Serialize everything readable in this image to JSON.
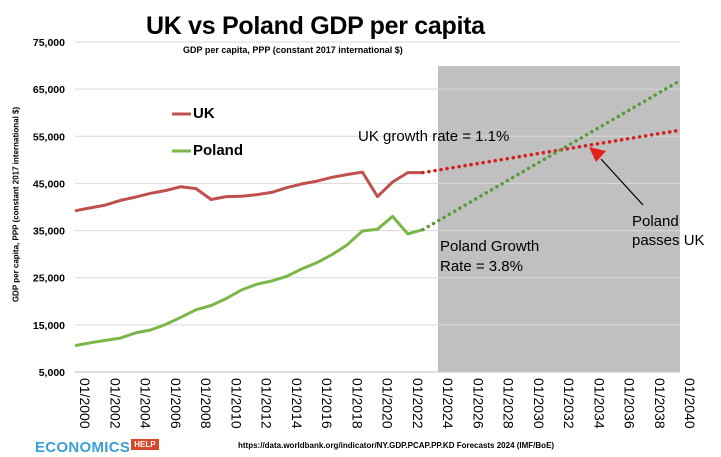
{
  "chart_data": {
    "type": "line",
    "title": "UK vs Poland GDP per capita",
    "subtitle": "GDP per capita, PPP (constant 2017 international $)",
    "ylabel": "GDP per capita, PPP (constant 2017 international $)",
    "xlabel": "",
    "ylim": [
      5000,
      75000
    ],
    "xlim": [
      2000,
      2040
    ],
    "yticks": [
      5000,
      15000,
      25000,
      35000,
      45000,
      55000,
      65000,
      75000
    ],
    "ytick_labels": [
      "5,000",
      "15,000",
      "25,000",
      "35,000",
      "45,000",
      "55,000",
      "65,000",
      "75,000"
    ],
    "xticks": [
      2000,
      2002,
      2004,
      2006,
      2008,
      2010,
      2012,
      2014,
      2016,
      2018,
      2020,
      2022,
      2024,
      2026,
      2028,
      2030,
      2032,
      2034,
      2036,
      2038,
      2040
    ],
    "xtick_labels": [
      "01/2000",
      "01/2002",
      "01/2004",
      "01/2006",
      "01/2008",
      "01/2010",
      "01/2012",
      "01/2014",
      "01/2016",
      "01/2018",
      "01/2020",
      "01/2022",
      "01/2024",
      "01/2026",
      "01/2028",
      "01/2030",
      "01/2032",
      "01/2034",
      "01/2036",
      "01/2038",
      "01/2040"
    ],
    "grid": "horizontal",
    "legend_position": "upper-left",
    "forecast_shading": {
      "from": 2024,
      "to": 2040,
      "color": "#c0c0c0"
    },
    "series": [
      {
        "name": "UK",
        "color": "#c0504d",
        "x": [
          2000,
          2001,
          2002,
          2003,
          2004,
          2005,
          2006,
          2007,
          2008,
          2009,
          2010,
          2011,
          2012,
          2013,
          2014,
          2015,
          2016,
          2017,
          2018,
          2019,
          2020,
          2021,
          2022,
          2023
        ],
        "values": [
          39200,
          39800,
          40400,
          41400,
          42100,
          42900,
          43500,
          44300,
          43900,
          41600,
          42200,
          42300,
          42600,
          43100,
          44100,
          44900,
          45500,
          46300,
          46900,
          47400,
          42200,
          45300,
          47300,
          47300
        ],
        "forecast": {
          "x": [
            2023,
            2040
          ],
          "values": [
            47300,
            56300
          ],
          "style": "dotted"
        }
      },
      {
        "name": "Poland",
        "color": "#7ab648",
        "x": [
          2000,
          2001,
          2002,
          2003,
          2004,
          2005,
          2006,
          2007,
          2008,
          2009,
          2010,
          2011,
          2012,
          2013,
          2014,
          2015,
          2016,
          2017,
          2018,
          2019,
          2020,
          2021,
          2022,
          2023
        ],
        "values": [
          10600,
          11200,
          11700,
          12200,
          13300,
          13900,
          15100,
          16600,
          18200,
          19100,
          20600,
          22400,
          23600,
          24300,
          25300,
          26900,
          28200,
          29900,
          32000,
          34900,
          35300,
          38000,
          34300,
          35200
        ],
        "forecast": {
          "x": [
            2023,
            2040
          ],
          "values": [
            35200,
            66800
          ],
          "style": "dotted"
        }
      }
    ],
    "annotations": {
      "uk_rate": "UK growth rate = 1.1%",
      "poland_rate_line1": "Poland Growth",
      "poland_rate_line2": "Rate = 3.8%",
      "passes_line1": "Poland",
      "passes_line2": "passes UK"
    },
    "source": "https://data.worldbank.org/indicator/NY.GDP.PCAP.PP.KD Forecasts 2024 (IMF/BoE)"
  },
  "legend": {
    "uk": "UK",
    "poland": "Poland"
  },
  "logo": {
    "main": "ECONOMICS",
    "badge": "HELP"
  },
  "colors": {
    "uk": "#c0504d",
    "poland": "#7ab648",
    "forecast_shade": "#c0c0c0",
    "arrow_head": "#e8201a"
  }
}
